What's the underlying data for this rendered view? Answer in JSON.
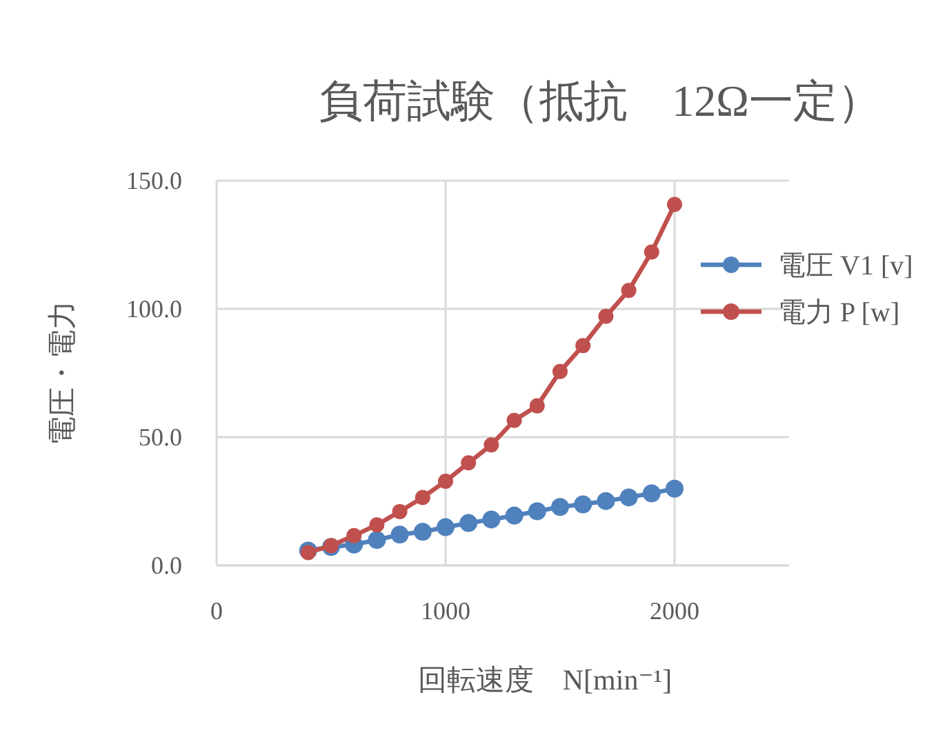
{
  "chart_data": {
    "type": "line",
    "title": "負荷試験（抵抗　12Ω一定）",
    "xlabel": "回転速度　N[min⁻¹]",
    "ylabel": "電圧・電力",
    "x": [
      400,
      500,
      600,
      700,
      800,
      900,
      1000,
      1100,
      1200,
      1300,
      1400,
      1500,
      1600,
      1700,
      1800,
      1900,
      2000
    ],
    "series": [
      {
        "name": "電圧 V1 [v]",
        "color": "#4f81bd",
        "values": [
          5.8,
          7.2,
          8.1,
          9.9,
          12.0,
          13.1,
          14.9,
          16.5,
          17.9,
          19.4,
          21.1,
          22.8,
          23.8,
          25.1,
          26.5,
          28.1,
          29.9
        ]
      },
      {
        "name": "電力 P [w]",
        "color": "#c0504d",
        "values": [
          5.0,
          7.7,
          11.6,
          15.8,
          21.0,
          26.5,
          32.8,
          40.0,
          47.0,
          56.5,
          62.2,
          75.6,
          85.7,
          97.1,
          107.2,
          122.2,
          140.7
        ]
      }
    ],
    "xlim": [
      0,
      2500
    ],
    "xticks": [
      0,
      1000,
      2000
    ],
    "ylim": [
      0,
      150
    ],
    "yticks": [
      {
        "value": 0,
        "label": "0.0"
      },
      {
        "value": 50,
        "label": "50.0"
      },
      {
        "value": 100,
        "label": "100.0"
      },
      {
        "value": 150,
        "label": "150.0"
      }
    ],
    "grid": true,
    "legend": "right",
    "marker": "circle",
    "line_style": "solid"
  }
}
